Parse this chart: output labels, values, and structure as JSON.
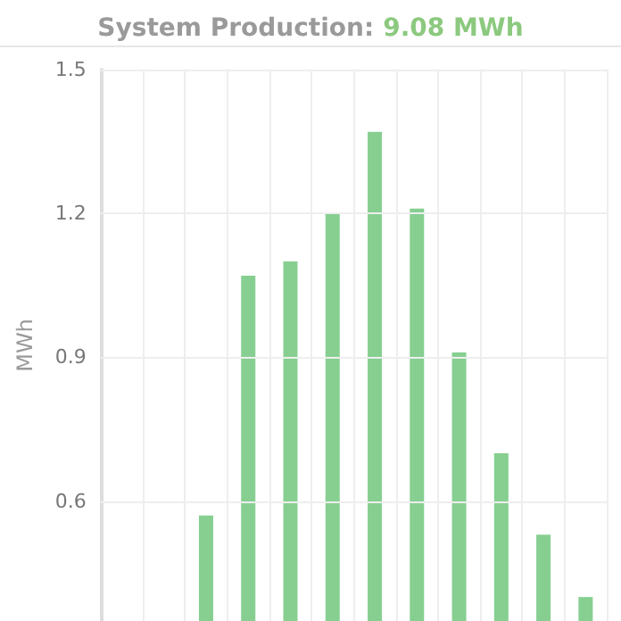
{
  "chart_data": {
    "type": "bar",
    "title": "System Production:",
    "annotations": [
      "9.08 MWh"
    ],
    "ylabel": "MWh",
    "categories": [
      null,
      null,
      null,
      null,
      null,
      null,
      null,
      null,
      null,
      null,
      null,
      null
    ],
    "values": [
      null,
      null,
      0.57,
      1.07,
      1.1,
      1.2,
      1.37,
      1.21,
      0.91,
      0.7,
      0.53,
      0.4
    ],
    "color": "#86cf91",
    "ylim": [
      0.35,
      1.5
    ],
    "yticks": [
      0.6,
      0.9,
      1.2,
      1.5
    ],
    "grid": true,
    "tick_labels": "y"
  }
}
